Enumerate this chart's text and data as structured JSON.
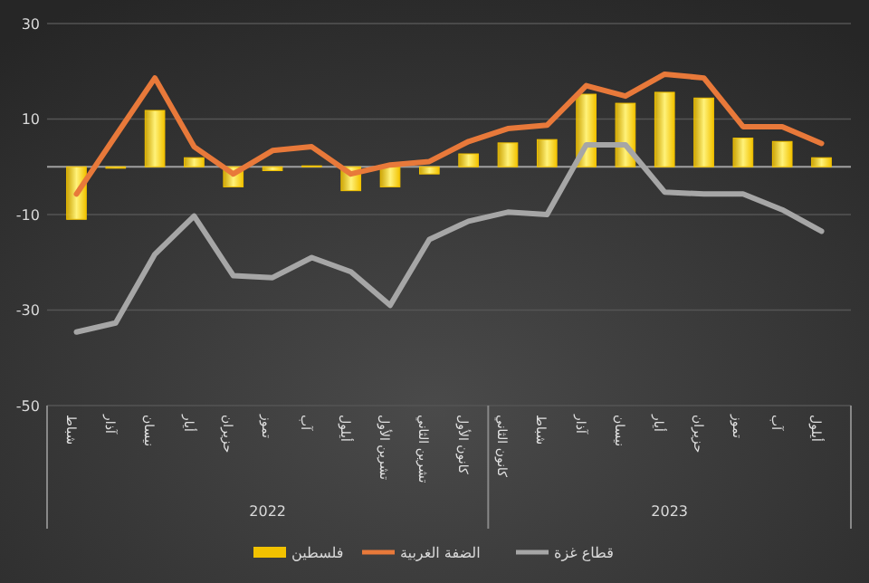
{
  "chart_data": {
    "type": "bar",
    "categories": [
      "شباط",
      "آذار",
      "نيسان",
      "أيار",
      "حزيران",
      "تموز",
      "آب",
      "أيلول",
      "تشرين الأول",
      "تشرين الثاني",
      "كانون الأول",
      "كانون الثاني",
      "شباط",
      "آذار",
      "نيسان",
      "أيار",
      "حزيران",
      "تموز",
      "آب",
      "أيلول"
    ],
    "series": [
      {
        "name": "فلسطين",
        "color": "#f2c200",
        "values": [
          -11,
          -0.3,
          11.8,
          1.9,
          -4.2,
          -0.8,
          0.2,
          -5,
          -4.2,
          -1.5,
          2.7,
          5,
          5.7,
          15.2,
          13.3,
          15.6,
          14.4,
          6,
          5.3,
          1.9
        ]
      },
      {
        "name": "الضفة الغربية",
        "type": "line",
        "color": "#e8793a",
        "values": [
          -5.7,
          6.5,
          18.6,
          4.2,
          -1.5,
          3.4,
          4.2,
          -1.5,
          0.4,
          1.1,
          5.3,
          8,
          8.7,
          17,
          14.8,
          19.4,
          18.6,
          8.4,
          8.4,
          4.9
        ]
      },
      {
        "name": "قطاع غزة",
        "type": "line",
        "color": "#a6a6a6",
        "values": [
          -34.6,
          -32.7,
          -18.3,
          -10.3,
          -22.8,
          -23.2,
          -19,
          -22,
          -29,
          -15.2,
          -11.4,
          -9.5,
          -10,
          4.6,
          4.6,
          -5.3,
          -5.7,
          -5.7,
          -9,
          -13.5
        ]
      }
    ],
    "ylim": [
      -50,
      30
    ],
    "yticks": [
      -50,
      -30,
      -10,
      10,
      30
    ],
    "grid": "y",
    "legend": "bottom",
    "marker": "none",
    "line_style": "solid",
    "annotations": [
      "2022",
      "2023"
    ]
  }
}
